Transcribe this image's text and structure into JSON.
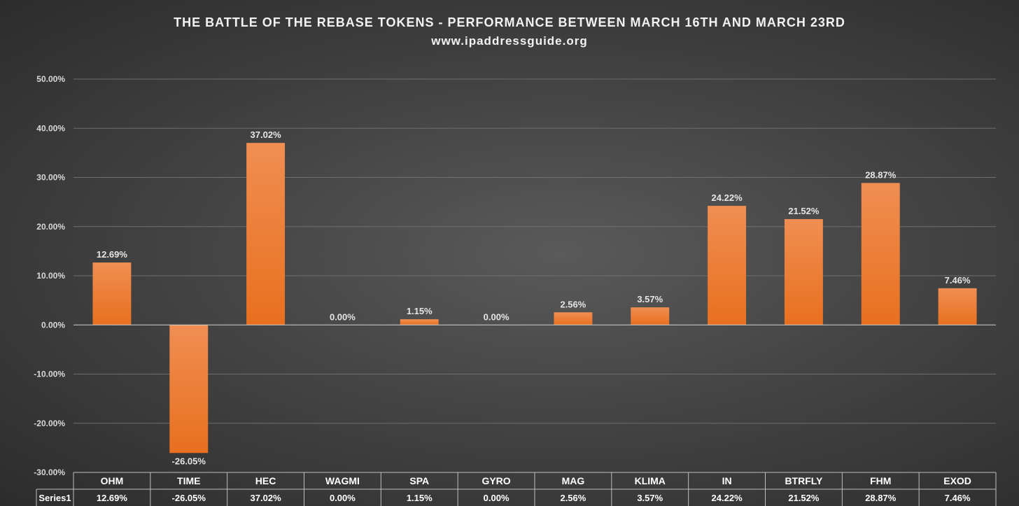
{
  "chart_data": {
    "type": "bar",
    "title": "THE BATTLE OF THE REBASE TOKENS - PERFORMANCE BETWEEN MARCH 16TH AND MARCH 23RD",
    "subtitle": "www.ipaddressguide.org",
    "categories": [
      "OHM",
      "TIME",
      "HEC",
      "WAGMI",
      "SPA",
      "GYRO",
      "MAG",
      "KLIMA",
      "IN",
      "BTRFLY",
      "FHM",
      "EXOD"
    ],
    "series": [
      {
        "name": "Series1",
        "values": [
          12.69,
          -26.05,
          37.02,
          0.0,
          1.15,
          0.0,
          2.56,
          3.57,
          24.22,
          21.52,
          28.87,
          7.46
        ],
        "labels": [
          "12.69%",
          "-26.05%",
          "37.02%",
          "0.00%",
          "1.15%",
          "0.00%",
          "2.56%",
          "3.57%",
          "24.22%",
          "21.52%",
          "28.87%",
          "7.46%"
        ]
      }
    ],
    "y_ticks": [
      50,
      40,
      30,
      20,
      10,
      0,
      -10,
      -20,
      -30
    ],
    "y_tick_labels": [
      "50.00%",
      "40.00%",
      "30.00%",
      "20.00%",
      "10.00%",
      "0.00%",
      "-10.00%",
      "-20.00%",
      "-30.00%"
    ],
    "ylim": [
      -30,
      50
    ],
    "grid": true,
    "data_table": true,
    "bar_color": "#ed7d31"
  }
}
